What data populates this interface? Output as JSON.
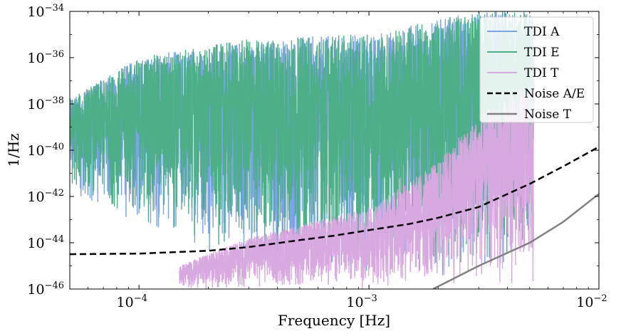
{
  "chart_data": {
    "type": "line",
    "xlabel": "Frequency [Hz]",
    "ylabel": "1/Hz",
    "xscale": "log",
    "yscale": "log",
    "xlim": [
      5e-05,
      0.01
    ],
    "ylim": [
      1e-46,
      1e-34
    ],
    "x_ticks": [
      {
        "value": 0.0001,
        "base": "10",
        "exp": "−4"
      },
      {
        "value": 0.001,
        "base": "10",
        "exp": "−3"
      },
      {
        "value": 0.01,
        "base": "10",
        "exp": "−2"
      }
    ],
    "y_ticks": [
      {
        "value": 1e-46,
        "base": "10",
        "exp": "−46"
      },
      {
        "value": 1e-44,
        "base": "10",
        "exp": "−44"
      },
      {
        "value": 1e-42,
        "base": "10",
        "exp": "−42"
      },
      {
        "value": 1e-40,
        "base": "10",
        "exp": "−40"
      },
      {
        "value": 1e-38,
        "base": "10",
        "exp": "−38"
      },
      {
        "value": 1e-36,
        "base": "10",
        "exp": "−36"
      },
      {
        "value": 1e-34,
        "base": "10",
        "exp": "−34"
      }
    ],
    "legend_position": "top-right",
    "grid": false,
    "series": [
      {
        "name": "TDI A",
        "color": "#7aa3e8",
        "style": "noisy",
        "x_max": 0.0052,
        "envelope_log10": {
          "x": [
            5e-05,
            0.0001,
            0.0003,
            0.001,
            0.003,
            0.0052
          ],
          "upper": [
            -37.8,
            -36.0,
            -35.2,
            -35.0,
            -34.0,
            -34.0
          ],
          "lower": [
            -42.0,
            -43.5,
            -45.0,
            -45.5,
            -45.5,
            -45.0
          ]
        }
      },
      {
        "name": "TDI E",
        "color": "#4caf88",
        "style": "noisy",
        "x_max": 0.0052,
        "envelope_log10": {
          "x": [
            5e-05,
            0.0001,
            0.0003,
            0.001,
            0.003,
            0.0052
          ],
          "upper": [
            -37.8,
            -36.0,
            -35.2,
            -35.0,
            -34.0,
            -34.0
          ],
          "lower": [
            -41.8,
            -43.2,
            -44.8,
            -45.3,
            -45.3,
            -44.8
          ]
        }
      },
      {
        "name": "TDI T",
        "color": "#d8a8e0",
        "style": "noisy",
        "x_max": 0.0052,
        "envelope_log10": {
          "x": [
            0.00015,
            0.0003,
            0.001,
            0.002,
            0.003,
            0.0052
          ],
          "upper": [
            -45.0,
            -43.8,
            -42.5,
            -40.5,
            -38.5,
            -37.0
          ],
          "lower": [
            -46.0,
            -46.0,
            -46.0,
            -46.0,
            -46.0,
            -46.0
          ]
        }
      },
      {
        "name": "Noise A/E",
        "color": "#000000",
        "style": "dashed",
        "x": [
          5e-05,
          0.0001,
          0.0002,
          0.0003,
          0.0005,
          0.0007,
          0.001,
          0.0015,
          0.002,
          0.003,
          0.005,
          0.007,
          0.01
        ],
        "y": [
          3.2e-45,
          3.4e-45,
          4.5e-45,
          6.5e-45,
          1.3e-44,
          2e-44,
          3.5e-44,
          6.5e-44,
          1.2e-43,
          3.5e-43,
          3.5e-42,
          2e-41,
          1.4e-40
        ]
      },
      {
        "name": "Noise T",
        "color": "#808080",
        "style": "solid",
        "x": [
          0.0019,
          0.003,
          0.005,
          0.007,
          0.01
        ],
        "y": [
          1e-46,
          1e-45,
          1e-44,
          8e-44,
          1.3e-42
        ]
      }
    ]
  }
}
